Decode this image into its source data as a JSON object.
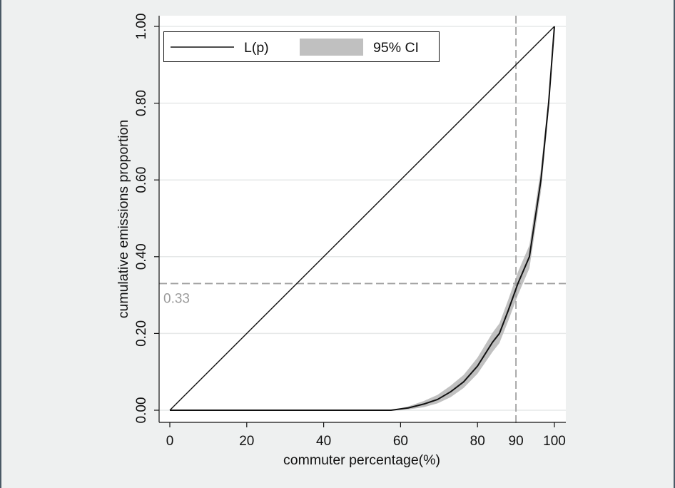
{
  "chart_data": {
    "type": "line",
    "title": "",
    "xlabel": "commuter percentage(%)",
    "ylabel": "cumulative emissions proportion",
    "xlim": [
      0,
      100
    ],
    "ylim": [
      0,
      1
    ],
    "x_ticks": [
      0,
      20,
      40,
      60,
      80,
      90,
      100
    ],
    "x_tick_labels": [
      "0",
      "20",
      "40",
      "60",
      "80",
      "90",
      "100"
    ],
    "y_ticks": [
      0,
      0.2,
      0.4,
      0.6,
      0.8,
      1.0
    ],
    "y_tick_labels": [
      "0.00",
      "0.20",
      "0.40",
      "0.60",
      "0.80",
      "1.00"
    ],
    "grid": "horizontal",
    "legend_position": "top-left inside",
    "legend": [
      {
        "label": "L(p)",
        "style": "line",
        "color": "#111111"
      },
      {
        "label": "95% CI",
        "style": "band",
        "color": "#c0c0c0"
      }
    ],
    "series": [
      {
        "name": "Equality line",
        "x": [
          0,
          100
        ],
        "y": [
          0,
          1.0
        ]
      },
      {
        "name": "L(p)",
        "x": [
          0,
          57.5,
          62,
          66,
          69.6,
          73,
          76.4,
          80,
          83.9,
          85.7,
          88,
          90.5,
          93.5,
          96.5,
          98.5,
          100
        ],
        "y": [
          0,
          0,
          0.006,
          0.016,
          0.028,
          0.048,
          0.074,
          0.115,
          0.177,
          0.2,
          0.26,
          0.33,
          0.4,
          0.6,
          0.8,
          1.0
        ]
      },
      {
        "name": "95% CI",
        "x": [
          57.5,
          62,
          66,
          69.6,
          73,
          76.4,
          80,
          83.9,
          85.7,
          88,
          90.5,
          93.5,
          96.5,
          98.5,
          100
        ],
        "lower": [
          0,
          0.002,
          0.008,
          0.018,
          0.034,
          0.058,
          0.095,
          0.152,
          0.175,
          0.233,
          0.3,
          0.37,
          0.57,
          0.78,
          1.0
        ],
        "upper": [
          0,
          0.01,
          0.024,
          0.04,
          0.064,
          0.092,
          0.137,
          0.202,
          0.226,
          0.288,
          0.36,
          0.43,
          0.63,
          0.82,
          1.0
        ]
      }
    ],
    "reference_lines": [
      {
        "orientation": "horizontal",
        "value": 0.33,
        "label": "0.33",
        "style": "dashed",
        "color": "#a0a0a0"
      },
      {
        "orientation": "vertical",
        "value": 90,
        "label": "90",
        "style": "dashed",
        "color": "#a0a0a0"
      }
    ]
  }
}
